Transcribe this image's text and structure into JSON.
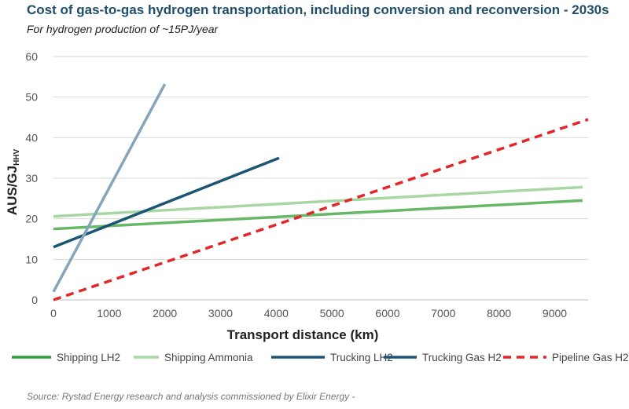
{
  "title": "Cost of gas-to-gas hydrogen transportation, including conversion and reconversion - 2030s",
  "subtitle": "For hydrogen production of ~15PJ/year",
  "source": "Source:  Rystad Energy research and analysis commissioned by Elixir Energy -",
  "chart_data": {
    "type": "line",
    "xlabel": "Transport distance (km)",
    "ylabel": "AUS/GJ",
    "ylabel_sub": "HHV",
    "xlim": [
      0,
      9600
    ],
    "ylim": [
      0,
      60
    ],
    "xticks": [
      0,
      1000,
      2000,
      3000,
      4000,
      5000,
      6000,
      7000,
      8000,
      9000
    ],
    "yticks": [
      0,
      10,
      20,
      30,
      40,
      50,
      60
    ],
    "grid": "horizontal",
    "legend_position": "bottom",
    "series": [
      {
        "name": "Shipping LH2",
        "color": "#66b866",
        "legend_color": "#2e9e3a",
        "dash": false,
        "x": [
          0,
          9500
        ],
        "y": [
          17.5,
          24.5
        ]
      },
      {
        "name": "Shipping Ammonia",
        "color": "#a8d7a3",
        "legend_color": "#a8d7a3",
        "dash": false,
        "x": [
          0,
          9500
        ],
        "y": [
          20.6,
          27.8
        ]
      },
      {
        "name": "Trucking LH2",
        "color": "#1c5574",
        "legend_color": "#1c5574",
        "dash": false,
        "x": [
          0,
          4050
        ],
        "y": [
          13.0,
          35.0
        ]
      },
      {
        "name": "Trucking Gas H2",
        "color": "#86a5ba",
        "legend_color": "#1c5574",
        "dash": false,
        "x": [
          0,
          2000
        ],
        "y": [
          2.0,
          53.2
        ]
      },
      {
        "name": "Pipeline Gas H2",
        "color": "#e52629",
        "legend_color": "#e52629",
        "dash": true,
        "x": [
          0,
          9600
        ],
        "y": [
          0.0,
          44.5
        ]
      }
    ]
  }
}
